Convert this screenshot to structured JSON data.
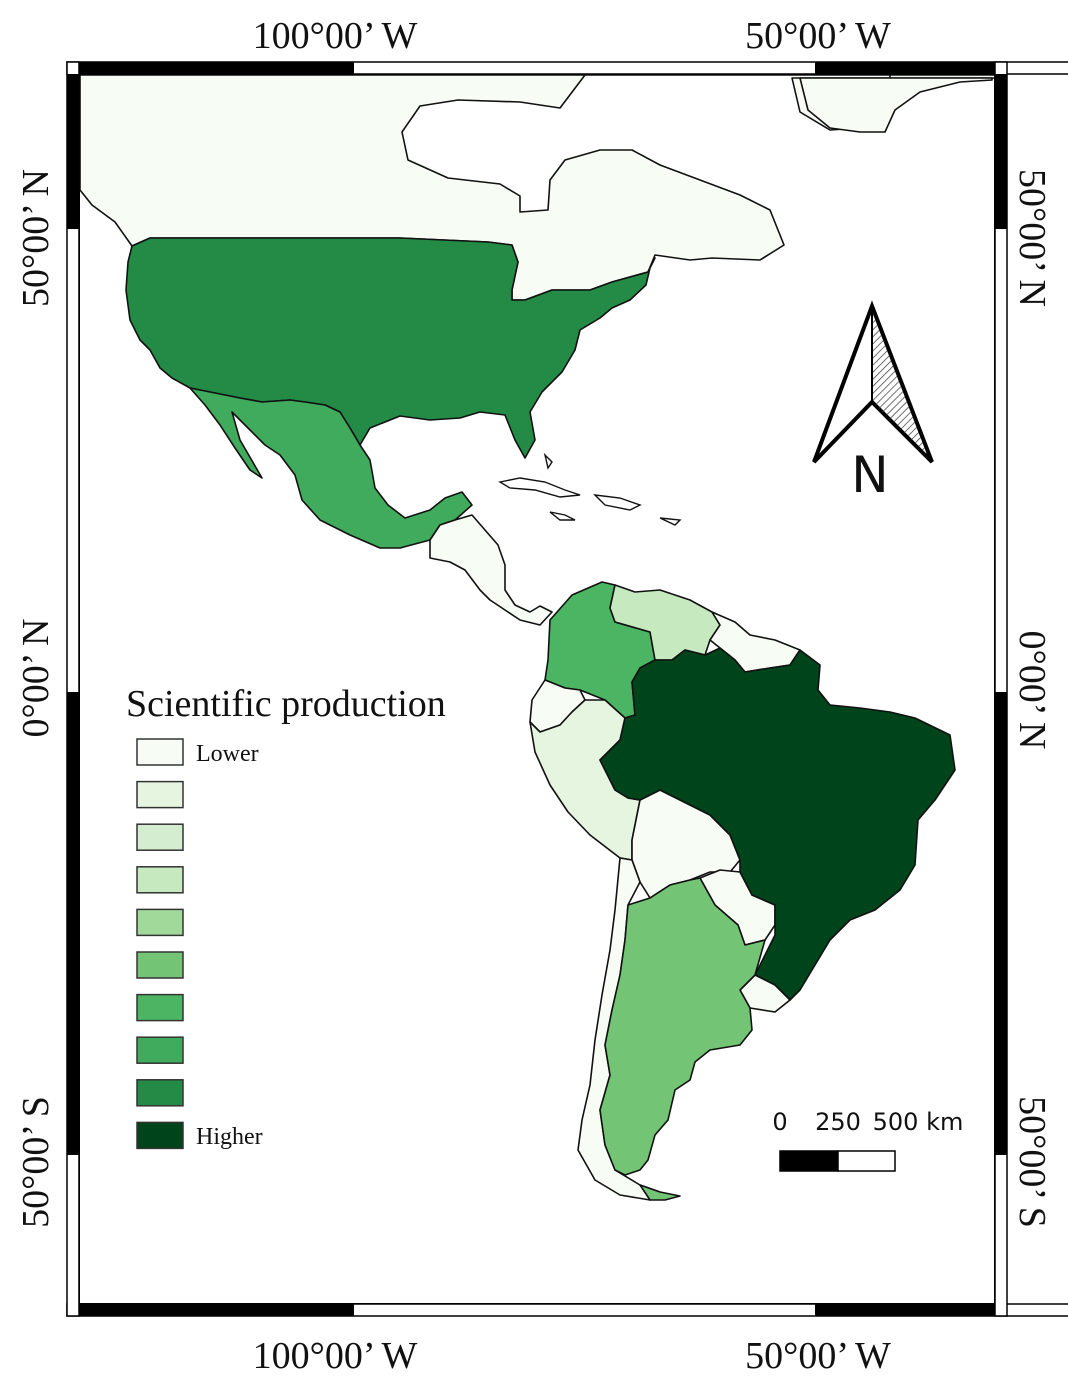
{
  "map": {
    "coordinates": {
      "top_lon_left": "100°00’ W",
      "top_lon_right": "50°00’ W",
      "bottom_lon_left": "100°00’ W",
      "bottom_lon_right": "50°00’ W",
      "left_lat_top": "50°00’ N",
      "left_lat_mid": "0°00’ N",
      "left_lat_bottom": "50°00’ S",
      "right_lat_top": "50°00’ N",
      "right_lat_mid": "0°00’ N",
      "right_lat_bottom": "50°00’ S"
    },
    "legend": {
      "title": "Scientific production",
      "low_label": "Lower",
      "high_label": "Higher",
      "colors": [
        "#f7fcf5",
        "#e5f5e0",
        "#d4ecd0",
        "#c7e9c0",
        "#a1d99b",
        "#74c476",
        "#4cb564",
        "#41ab5d",
        "#238b45",
        "#00441b"
      ]
    },
    "scale_bar": {
      "labels": [
        "0",
        "250",
        "500 km"
      ]
    },
    "north_arrow": {
      "letter": "N"
    },
    "background_color": "#ffffff",
    "neatline_color": "#000000",
    "regions": [
      {
        "name_icon": "canada",
        "level": 0
      },
      {
        "name_icon": "greenland",
        "level": 0
      },
      {
        "name_icon": "usa",
        "level": 8
      },
      {
        "name_icon": "mexico",
        "level": 7
      },
      {
        "name_icon": "central-america",
        "level": 0
      },
      {
        "name_icon": "colombia",
        "level": 6
      },
      {
        "name_icon": "venezuela",
        "level": 3
      },
      {
        "name_icon": "ecuador",
        "level": 0
      },
      {
        "name_icon": "peru",
        "level": 1
      },
      {
        "name_icon": "bolivia",
        "level": 0
      },
      {
        "name_icon": "guianas",
        "level": 0
      },
      {
        "name_icon": "brazil",
        "level": 9
      },
      {
        "name_icon": "paraguay",
        "level": 0
      },
      {
        "name_icon": "chile",
        "level": 0
      },
      {
        "name_icon": "argentina",
        "level": 5
      },
      {
        "name_icon": "uruguay",
        "level": 0
      }
    ]
  }
}
